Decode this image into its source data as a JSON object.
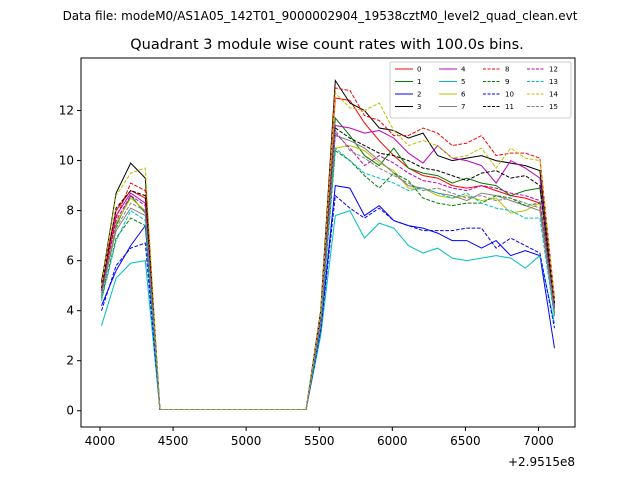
{
  "chart_data": {
    "type": "line",
    "suptitle": "Data file: modeM0/AS1A05_142T01_9000002904_19538cztM0_level2_quad_clean.evt",
    "title": "Quadrant 3 module wise count rates with 100.0s bins.",
    "xlabel": "",
    "ylabel": "",
    "x_offset_label": "+2.9515e8",
    "xlim": [
      3870,
      7250
    ],
    "ylim": [
      -0.65,
      14.1
    ],
    "xticks": [
      4000,
      4500,
      5000,
      5500,
      6000,
      6500,
      7000
    ],
    "yticks": [
      0,
      2,
      4,
      6,
      8,
      10,
      12
    ],
    "legend_location": "top-right",
    "x": [
      4010,
      4110,
      4210,
      4310,
      4410,
      4510,
      4610,
      4710,
      4810,
      4910,
      5010,
      5110,
      5210,
      5310,
      5410,
      5510,
      5610,
      5710,
      5810,
      5910,
      6010,
      6110,
      6210,
      6310,
      6410,
      6510,
      6610,
      6710,
      6810,
      6910,
      7010,
      7110
    ],
    "series": [
      {
        "name": "0",
        "color": "#ff0000",
        "dash": "solid",
        "values": [
          5.2,
          8.0,
          8.8,
          8.5,
          0.05,
          0.05,
          0.05,
          0.05,
          0.05,
          0.05,
          0.05,
          0.05,
          0.05,
          0.05,
          0.05,
          3.8,
          12.5,
          12.4,
          11.5,
          10.8,
          10.2,
          9.7,
          9.4,
          9.3,
          9.0,
          8.9,
          9.0,
          8.8,
          8.6,
          8.5,
          8.3,
          4.3
        ]
      },
      {
        "name": "1",
        "color": "#008000",
        "dash": "solid",
        "values": [
          4.8,
          7.4,
          8.6,
          7.9,
          0.05,
          0.05,
          0.05,
          0.05,
          0.05,
          0.05,
          0.05,
          0.05,
          0.05,
          0.05,
          0.05,
          3.6,
          11.7,
          11.0,
          10.2,
          9.8,
          10.5,
          9.7,
          9.5,
          9.4,
          9.1,
          9.3,
          9.1,
          9.0,
          8.6,
          8.8,
          8.9,
          4.1
        ]
      },
      {
        "name": "2",
        "color": "#0000ff",
        "dash": "solid",
        "values": [
          4.2,
          5.6,
          6.6,
          7.4,
          0.05,
          0.05,
          0.05,
          0.05,
          0.05,
          0.05,
          0.05,
          0.05,
          0.05,
          0.05,
          0.05,
          3.3,
          9.0,
          8.9,
          7.8,
          8.2,
          7.6,
          7.4,
          7.3,
          7.1,
          6.8,
          6.8,
          6.5,
          6.8,
          6.2,
          6.4,
          6.2,
          2.5
        ]
      },
      {
        "name": "3",
        "color": "#000000",
        "dash": "solid",
        "values": [
          5.1,
          8.7,
          9.9,
          9.3,
          0.05,
          0.05,
          0.05,
          0.05,
          0.05,
          0.05,
          0.05,
          0.05,
          0.05,
          0.05,
          0.05,
          4.0,
          13.2,
          12.3,
          12.0,
          11.3,
          11.2,
          10.9,
          11.1,
          10.2,
          10.0,
          10.1,
          10.2,
          10.0,
          9.9,
          9.8,
          9.6,
          4.4
        ]
      },
      {
        "name": "4",
        "color": "#c000c0",
        "dash": "solid",
        "values": [
          4.9,
          7.8,
          8.7,
          8.3,
          0.05,
          0.05,
          0.05,
          0.05,
          0.05,
          0.05,
          0.05,
          0.05,
          0.05,
          0.05,
          0.05,
          3.7,
          11.4,
          11.3,
          11.1,
          11.2,
          10.9,
          10.3,
          9.9,
          10.6,
          10.1,
          10.0,
          9.8,
          9.1,
          10.0,
          9.7,
          9.3,
          4.2
        ]
      },
      {
        "name": "5",
        "color": "#00c0c0",
        "dash": "solid",
        "values": [
          3.4,
          5.3,
          5.9,
          6.0,
          0.05,
          0.05,
          0.05,
          0.05,
          0.05,
          0.05,
          0.05,
          0.05,
          0.05,
          0.05,
          0.05,
          3.0,
          7.8,
          8.0,
          6.9,
          7.5,
          7.3,
          6.6,
          6.3,
          6.5,
          6.1,
          6.0,
          6.1,
          6.2,
          6.1,
          5.7,
          6.2,
          3.5
        ]
      },
      {
        "name": "6",
        "color": "#c0c000",
        "dash": "solid",
        "values": [
          4.6,
          7.5,
          8.5,
          8.0,
          0.05,
          0.05,
          0.05,
          0.05,
          0.05,
          0.05,
          0.05,
          0.05,
          0.05,
          0.05,
          0.05,
          3.5,
          10.5,
          10.6,
          10.4,
          9.9,
          9.6,
          8.9,
          8.9,
          8.6,
          8.5,
          8.6,
          8.4,
          8.5,
          7.9,
          8.0,
          8.3,
          3.9
        ]
      },
      {
        "name": "7",
        "color": "#808080",
        "dash": "solid",
        "values": [
          4.7,
          7.2,
          8.1,
          7.8,
          0.05,
          0.05,
          0.05,
          0.05,
          0.05,
          0.05,
          0.05,
          0.05,
          0.05,
          0.05,
          0.05,
          3.4,
          11.0,
          10.8,
          10.5,
          10.0,
          9.5,
          9.0,
          8.9,
          8.7,
          8.6,
          8.4,
          8.7,
          8.6,
          8.4,
          8.2,
          8.0,
          3.8
        ]
      },
      {
        "name": "8",
        "color": "#ff0000",
        "dash": "dashed",
        "values": [
          5.0,
          7.7,
          9.1,
          8.8,
          0.05,
          0.05,
          0.05,
          0.05,
          0.05,
          0.05,
          0.05,
          0.05,
          0.05,
          0.05,
          0.05,
          3.9,
          12.9,
          12.8,
          11.8,
          11.6,
          11.0,
          11.0,
          11.3,
          11.1,
          10.6,
          10.7,
          11.0,
          10.2,
          10.3,
          10.3,
          10.1,
          4.5
        ]
      },
      {
        "name": "9",
        "color": "#008000",
        "dash": "dashed",
        "values": [
          4.5,
          6.9,
          7.7,
          7.4,
          0.05,
          0.05,
          0.05,
          0.05,
          0.05,
          0.05,
          0.05,
          0.05,
          0.05,
          0.05,
          0.05,
          3.3,
          10.4,
          10.0,
          9.4,
          8.9,
          9.5,
          9.2,
          8.5,
          8.3,
          8.2,
          8.3,
          8.3,
          8.6,
          8.5,
          8.2,
          8.3,
          3.9
        ]
      },
      {
        "name": "10",
        "color": "#0000ff",
        "dash": "dashed",
        "values": [
          4.0,
          5.8,
          6.5,
          6.7,
          0.05,
          0.05,
          0.05,
          0.05,
          0.05,
          0.05,
          0.05,
          0.05,
          0.05,
          0.05,
          0.05,
          3.2,
          8.6,
          8.1,
          7.7,
          8.1,
          7.6,
          7.4,
          7.2,
          7.2,
          7.2,
          7.3,
          7.3,
          6.5,
          6.9,
          6.6,
          6.3,
          3.3
        ]
      },
      {
        "name": "11",
        "color": "#000000",
        "dash": "dashed",
        "values": [
          4.9,
          8.1,
          8.8,
          8.6,
          0.05,
          0.05,
          0.05,
          0.05,
          0.05,
          0.05,
          0.05,
          0.05,
          0.05,
          0.05,
          0.05,
          3.8,
          11.3,
          10.9,
          10.6,
          10.3,
          10.2,
          10.0,
          9.7,
          9.6,
          9.4,
          9.2,
          9.5,
          9.6,
          9.3,
          9.4,
          9.0,
          4.3
        ]
      },
      {
        "name": "12",
        "color": "#c000c0",
        "dash": "dashed",
        "values": [
          4.8,
          7.6,
          8.6,
          8.2,
          0.05,
          0.05,
          0.05,
          0.05,
          0.05,
          0.05,
          0.05,
          0.05,
          0.05,
          0.05,
          0.05,
          3.6,
          11.1,
          10.5,
          9.8,
          10.2,
          9.9,
          9.5,
          9.2,
          9.1,
          8.9,
          8.8,
          9.0,
          8.9,
          8.7,
          8.6,
          8.4,
          4.0
        ]
      },
      {
        "name": "13",
        "color": "#00c0c0",
        "dash": "dashed",
        "values": [
          4.4,
          6.8,
          8.0,
          7.6,
          0.05,
          0.05,
          0.05,
          0.05,
          0.05,
          0.05,
          0.05,
          0.05,
          0.05,
          0.05,
          0.05,
          3.4,
          10.5,
          10.0,
          9.5,
          9.3,
          9.1,
          8.8,
          8.9,
          8.7,
          8.5,
          8.7,
          8.3,
          8.1,
          8.0,
          7.7,
          7.7,
          3.7
        ]
      },
      {
        "name": "14",
        "color": "#c0c000",
        "dash": "dashed",
        "values": [
          5.0,
          8.6,
          9.5,
          9.7,
          0.05,
          0.05,
          0.05,
          0.05,
          0.05,
          0.05,
          0.05,
          0.05,
          0.05,
          0.05,
          0.05,
          3.9,
          12.7,
          12.1,
          12.0,
          12.3,
          11.2,
          10.6,
          10.8,
          10.6,
          10.1,
          10.2,
          10.5,
          9.7,
          10.5,
          10.1,
          10.0,
          4.4
        ]
      },
      {
        "name": "15",
        "color": "#808080",
        "dash": "dashed",
        "values": [
          4.6,
          7.3,
          8.3,
          8.0,
          0.05,
          0.05,
          0.05,
          0.05,
          0.05,
          0.05,
          0.05,
          0.05,
          0.05,
          0.05,
          0.05,
          3.5,
          11.2,
          10.4,
          10.1,
          9.7,
          9.4,
          9.1,
          8.8,
          8.9,
          8.7,
          8.5,
          8.6,
          8.4,
          8.5,
          8.3,
          8.1,
          3.9
        ]
      }
    ]
  }
}
